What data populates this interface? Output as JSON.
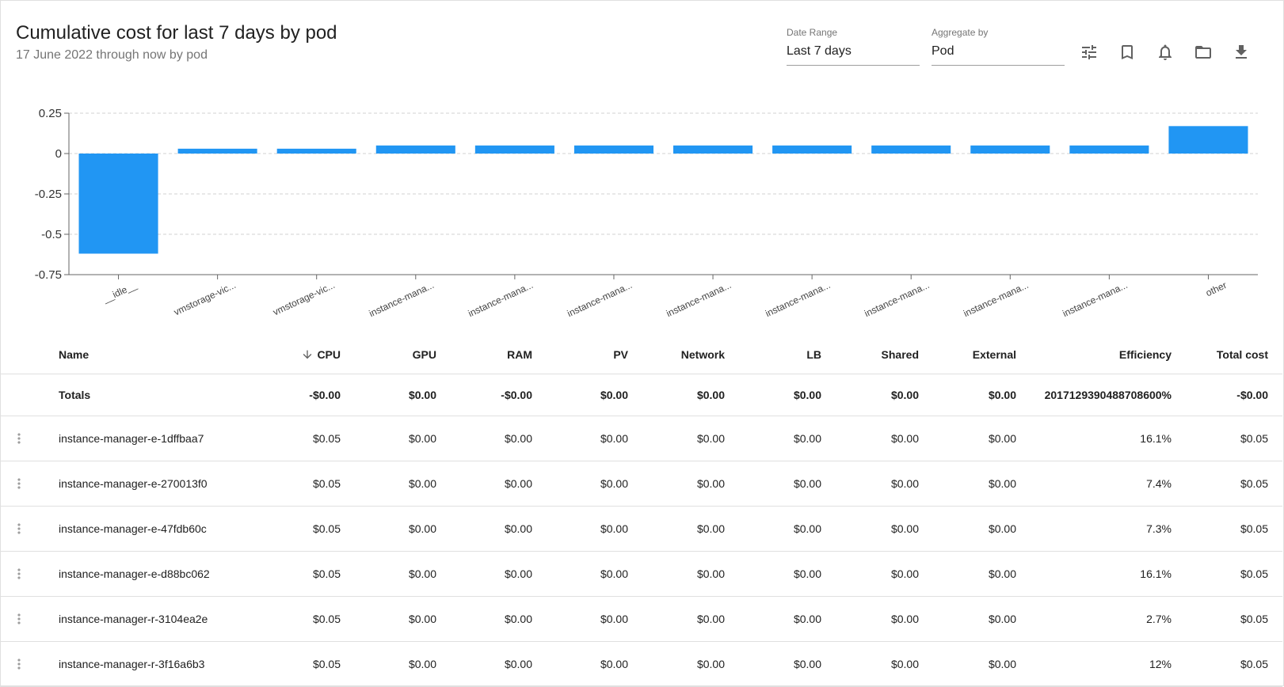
{
  "header": {
    "title": "Cumulative cost for last 7 days by pod",
    "subtitle": "17 June 2022 through now by pod"
  },
  "controls": {
    "date_range": {
      "label": "Date Range",
      "value": "Last 7 days"
    },
    "aggregate_by": {
      "label": "Aggregate by",
      "value": "Pod"
    },
    "toolbar_icons": [
      "tune-icon",
      "bookmark-icon",
      "bell-icon",
      "folder-icon",
      "download-icon"
    ]
  },
  "chart_data": {
    "type": "bar",
    "categories": [
      "__idle__",
      "vmstorage-vic...",
      "vmstorage-vic...",
      "instance-mana...",
      "instance-mana...",
      "instance-mana...",
      "instance-mana...",
      "instance-mana...",
      "instance-mana...",
      "instance-mana...",
      "instance-mana...",
      "other"
    ],
    "values": [
      -0.62,
      0.03,
      0.03,
      0.05,
      0.05,
      0.05,
      0.05,
      0.05,
      0.05,
      0.05,
      0.05,
      0.17
    ],
    "ylim": [
      -0.75,
      0.25
    ],
    "yticks": [
      "0.25",
      "0",
      "-0.25",
      "-0.5",
      "-0.75"
    ],
    "grid": true,
    "bar_color": "#2196f3"
  },
  "table": {
    "columns": [
      "Name",
      "CPU",
      "GPU",
      "RAM",
      "PV",
      "Network",
      "LB",
      "Shared",
      "External",
      "Efficiency",
      "Total cost"
    ],
    "sorted_column": "CPU",
    "sort_direction": "descending",
    "totals": [
      "Totals",
      "-$0.00",
      "$0.00",
      "-$0.00",
      "$0.00",
      "$0.00",
      "$0.00",
      "$0.00",
      "$0.00",
      "2017129390488708600%",
      "-$0.00"
    ],
    "rows": [
      [
        "instance-manager-e-1dffbaa7",
        "$0.05",
        "$0.00",
        "$0.00",
        "$0.00",
        "$0.00",
        "$0.00",
        "$0.00",
        "$0.00",
        "16.1%",
        "$0.05"
      ],
      [
        "instance-manager-e-270013f0",
        "$0.05",
        "$0.00",
        "$0.00",
        "$0.00",
        "$0.00",
        "$0.00",
        "$0.00",
        "$0.00",
        "7.4%",
        "$0.05"
      ],
      [
        "instance-manager-e-47fdb60c",
        "$0.05",
        "$0.00",
        "$0.00",
        "$0.00",
        "$0.00",
        "$0.00",
        "$0.00",
        "$0.00",
        "7.3%",
        "$0.05"
      ],
      [
        "instance-manager-e-d88bc062",
        "$0.05",
        "$0.00",
        "$0.00",
        "$0.00",
        "$0.00",
        "$0.00",
        "$0.00",
        "$0.00",
        "16.1%",
        "$0.05"
      ],
      [
        "instance-manager-r-3104ea2e",
        "$0.05",
        "$0.00",
        "$0.00",
        "$0.00",
        "$0.00",
        "$0.00",
        "$0.00",
        "$0.00",
        "2.7%",
        "$0.05"
      ],
      [
        "instance-manager-r-3f16a6b3",
        "$0.05",
        "$0.00",
        "$0.00",
        "$0.00",
        "$0.00",
        "$0.00",
        "$0.00",
        "$0.00",
        "12%",
        "$0.05"
      ]
    ]
  }
}
